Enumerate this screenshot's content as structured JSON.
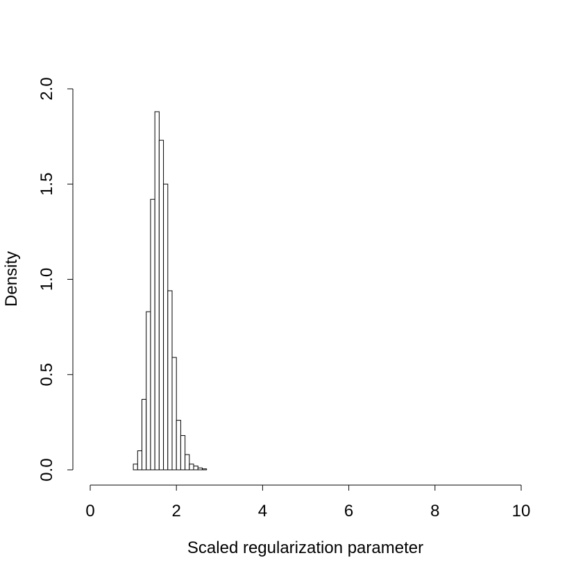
{
  "chart_data": {
    "type": "histogram",
    "xlabel": "Scaled regularization parameter",
    "ylabel": "Density",
    "bins": [
      0,
      0.1,
      0.2,
      0.3,
      0.4,
      0.5,
      0.6,
      0.7,
      0.8,
      0.9,
      1,
      1.1,
      1.2,
      1.3,
      1.4,
      1.5,
      1.6,
      1.7,
      1.8,
      1.9,
      2,
      2.1,
      2.2,
      2.3,
      2.4,
      2.5,
      2.6,
      2.7,
      2.8,
      2.9,
      3,
      3.1,
      3.2,
      3.3,
      3.4,
      3.5,
      3.6,
      3.7,
      3.8,
      3.9,
      4,
      4.1,
      4.2,
      4.3,
      4.4,
      4.5,
      4.6,
      4.7,
      4.8,
      4.9,
      5,
      5.1,
      5.2,
      5.3,
      5.4,
      5.5,
      5.6,
      5.7,
      5.8,
      5.9,
      6,
      6.1,
      6.2,
      6.3,
      6.4,
      6.5,
      6.6,
      6.7,
      6.8,
      6.9,
      7,
      7.1,
      7.2,
      7.3,
      7.4,
      7.5,
      7.6,
      7.7,
      7.8,
      7.9,
      8,
      8.1,
      8.2,
      8.3,
      8.4,
      8.5,
      8.6,
      8.7,
      8.8,
      8.9,
      9,
      9.1,
      9.2,
      9.3,
      9.4,
      9.5,
      9.6,
      9.7,
      9.8,
      9.9,
      10
    ],
    "values": [
      0,
      0,
      0,
      0,
      0,
      0,
      0,
      0,
      0,
      0,
      0.03,
      0.1,
      0.37,
      0.83,
      1.42,
      1.88,
      1.73,
      1.5,
      0.94,
      0.59,
      0.26,
      0.18,
      0.08,
      0.03,
      0.02,
      0.01,
      0.005,
      0,
      0,
      0,
      0,
      0,
      0,
      0,
      0,
      0,
      0,
      0,
      0,
      0,
      0,
      0,
      0,
      0,
      0,
      0,
      0,
      0,
      0,
      0,
      0,
      0,
      0,
      0,
      0,
      0,
      0,
      0,
      0,
      0,
      0,
      0,
      0,
      0,
      0,
      0,
      0,
      0,
      0,
      0,
      0,
      0,
      0,
      0,
      0,
      0,
      0,
      0,
      0,
      0,
      0,
      0,
      0,
      0,
      0,
      0,
      0,
      0,
      0,
      0,
      0,
      0,
      0,
      0,
      0,
      0,
      0,
      0,
      0,
      0
    ],
    "color": "#ffffff",
    "xlim": [
      0,
      10
    ],
    "xticks": [
      0,
      2,
      4,
      6,
      8,
      10
    ],
    "ylim": [
      0,
      2
    ],
    "yticks": [
      {
        "value": 0,
        "label": "0.0"
      },
      {
        "value": 0.5,
        "label": "0.5"
      },
      {
        "value": 1,
        "label": "1.0"
      },
      {
        "value": 1.5,
        "label": "1.5"
      },
      {
        "value": 2,
        "label": "2.0"
      }
    ]
  }
}
